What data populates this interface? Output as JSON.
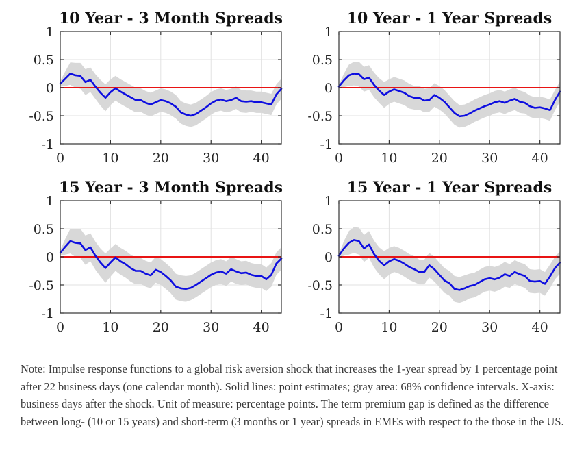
{
  "figure": {
    "note": "Note: Impulse response functions to a global risk aversion shock that increases the 1-year spread by 1 percentage point after 22 business days (one calendar month). Solid lines: point estimates; gray area: 68% confidence intervals. X-axis: business days after the shock. Unit of measure: percentage points. The term premium gap is defined as the difference between long- (10 or 15 years) and short-term (3 months or 1 year) spreads in EMEs with respect to the those in the US."
  },
  "chart_data": [
    {
      "type": "line",
      "title": "10 Year - 3 Month Spreads",
      "xlabel": "",
      "ylabel": "",
      "xlim": [
        0,
        44
      ],
      "ylim": [
        -1,
        1
      ],
      "x_ticks": [
        0,
        10,
        20,
        30,
        40
      ],
      "y_ticks": [
        1,
        0.5,
        0,
        -0.5,
        -1
      ],
      "grid": true,
      "x_start": 0,
      "x_step": 1,
      "line_color": "#0e0ee0",
      "zero_line_color": "#e81414",
      "band_color": "#d8d8d8",
      "series_name": "point estimate",
      "band_name": "68% confidence interval",
      "y": [
        0.07,
        0.16,
        0.25,
        0.22,
        0.21,
        0.1,
        0.14,
        0.02,
        -0.09,
        -0.18,
        -0.08,
        -0.01,
        -0.07,
        -0.12,
        -0.17,
        -0.22,
        -0.22,
        -0.27,
        -0.3,
        -0.26,
        -0.22,
        -0.24,
        -0.28,
        -0.34,
        -0.44,
        -0.48,
        -0.5,
        -0.47,
        -0.41,
        -0.35,
        -0.28,
        -0.23,
        -0.21,
        -0.24,
        -0.22,
        -0.18,
        -0.24,
        -0.25,
        -0.24,
        -0.26,
        -0.26,
        -0.28,
        -0.3,
        -0.12,
        -0.02
      ],
      "band_halfwidth": [
        0.05,
        0.13,
        0.2,
        0.22,
        0.23,
        0.23,
        0.22,
        0.22,
        0.23,
        0.24,
        0.23,
        0.22,
        0.22,
        0.22,
        0.22,
        0.22,
        0.21,
        0.21,
        0.21,
        0.21,
        0.21,
        0.21,
        0.21,
        0.21,
        0.2,
        0.2,
        0.2,
        0.2,
        0.2,
        0.2,
        0.2,
        0.2,
        0.2,
        0.2,
        0.2,
        0.2,
        0.2,
        0.2,
        0.19,
        0.19,
        0.19,
        0.19,
        0.19,
        0.18,
        0.18
      ]
    },
    {
      "type": "line",
      "title": "10 Year - 1 Year Spreads",
      "xlabel": "",
      "ylabel": "",
      "xlim": [
        0,
        44
      ],
      "ylim": [
        -1,
        1
      ],
      "x_ticks": [
        0,
        10,
        20,
        30,
        40
      ],
      "y_ticks": [
        1,
        0.5,
        0,
        -0.5,
        -1
      ],
      "grid": true,
      "x_start": 0,
      "x_step": 1,
      "line_color": "#0e0ee0",
      "zero_line_color": "#e81414",
      "band_color": "#d8d8d8",
      "series_name": "point estimate",
      "band_name": "68% confidence interval",
      "y": [
        0.02,
        0.13,
        0.22,
        0.25,
        0.24,
        0.15,
        0.18,
        0.05,
        -0.05,
        -0.13,
        -0.07,
        -0.03,
        -0.06,
        -0.09,
        -0.15,
        -0.18,
        -0.18,
        -0.23,
        -0.22,
        -0.13,
        -0.18,
        -0.25,
        -0.35,
        -0.45,
        -0.51,
        -0.5,
        -0.46,
        -0.41,
        -0.37,
        -0.33,
        -0.3,
        -0.26,
        -0.24,
        -0.27,
        -0.23,
        -0.2,
        -0.25,
        -0.27,
        -0.33,
        -0.36,
        -0.35,
        -0.37,
        -0.4,
        -0.22,
        -0.07
      ],
      "band_halfwidth": [
        0.03,
        0.12,
        0.19,
        0.21,
        0.22,
        0.22,
        0.22,
        0.22,
        0.22,
        0.23,
        0.22,
        0.22,
        0.22,
        0.22,
        0.22,
        0.21,
        0.21,
        0.21,
        0.21,
        0.21,
        0.21,
        0.21,
        0.21,
        0.21,
        0.2,
        0.2,
        0.2,
        0.2,
        0.2,
        0.2,
        0.2,
        0.2,
        0.2,
        0.2,
        0.2,
        0.2,
        0.2,
        0.19,
        0.19,
        0.19,
        0.19,
        0.19,
        0.19,
        0.18,
        0.18
      ]
    },
    {
      "type": "line",
      "title": "15 Year - 3 Month Spreads",
      "xlabel": "",
      "ylabel": "",
      "xlim": [
        0,
        44
      ],
      "ylim": [
        -1,
        1
      ],
      "x_ticks": [
        0,
        10,
        20,
        30,
        40
      ],
      "y_ticks": [
        1,
        0.5,
        0,
        -0.5,
        -1
      ],
      "grid": true,
      "x_start": 0,
      "x_step": 1,
      "line_color": "#0e0ee0",
      "zero_line_color": "#e81414",
      "band_color": "#d8d8d8",
      "series_name": "point estimate",
      "band_name": "68% confidence interval",
      "y": [
        0.07,
        0.18,
        0.28,
        0.25,
        0.24,
        0.12,
        0.17,
        0.02,
        -0.1,
        -0.2,
        -0.1,
        -0.01,
        -0.08,
        -0.13,
        -0.2,
        -0.25,
        -0.25,
        -0.3,
        -0.33,
        -0.23,
        -0.27,
        -0.34,
        -0.42,
        -0.53,
        -0.56,
        -0.57,
        -0.55,
        -0.5,
        -0.44,
        -0.38,
        -0.32,
        -0.28,
        -0.26,
        -0.3,
        -0.22,
        -0.26,
        -0.29,
        -0.28,
        -0.32,
        -0.34,
        -0.34,
        -0.4,
        -0.32,
        -0.12,
        -0.03
      ],
      "band_halfwidth": [
        0.05,
        0.14,
        0.22,
        0.25,
        0.26,
        0.26,
        0.25,
        0.25,
        0.25,
        0.26,
        0.25,
        0.24,
        0.24,
        0.24,
        0.24,
        0.24,
        0.23,
        0.23,
        0.23,
        0.23,
        0.23,
        0.23,
        0.23,
        0.23,
        0.23,
        0.23,
        0.22,
        0.22,
        0.22,
        0.22,
        0.22,
        0.22,
        0.22,
        0.22,
        0.22,
        0.22,
        0.21,
        0.21,
        0.21,
        0.21,
        0.21,
        0.21,
        0.21,
        0.2,
        0.2
      ]
    },
    {
      "type": "line",
      "title": "15 Year - 1 Year Spreads",
      "xlabel": "",
      "ylabel": "",
      "xlim": [
        0,
        44
      ],
      "ylim": [
        -1,
        1
      ],
      "x_ticks": [
        0,
        10,
        20,
        30,
        40
      ],
      "y_ticks": [
        1,
        0.5,
        0,
        -0.5,
        -1
      ],
      "grid": true,
      "x_start": 0,
      "x_step": 1,
      "line_color": "#0e0ee0",
      "zero_line_color": "#e81414",
      "band_color": "#d8d8d8",
      "series_name": "point estimate",
      "band_name": "68% confidence interval",
      "y": [
        0.02,
        0.15,
        0.25,
        0.3,
        0.28,
        0.15,
        0.22,
        0.05,
        -0.07,
        -0.15,
        -0.08,
        -0.04,
        -0.07,
        -0.12,
        -0.18,
        -0.22,
        -0.27,
        -0.27,
        -0.15,
        -0.22,
        -0.32,
        -0.42,
        -0.47,
        -0.57,
        -0.59,
        -0.56,
        -0.52,
        -0.5,
        -0.45,
        -0.4,
        -0.38,
        -0.4,
        -0.37,
        -0.31,
        -0.34,
        -0.27,
        -0.31,
        -0.34,
        -0.43,
        -0.44,
        -0.43,
        -0.48,
        -0.35,
        -0.2,
        -0.1
      ],
      "band_halfwidth": [
        0.03,
        0.13,
        0.21,
        0.23,
        0.24,
        0.24,
        0.24,
        0.24,
        0.24,
        0.25,
        0.24,
        0.23,
        0.23,
        0.23,
        0.23,
        0.23,
        0.22,
        0.22,
        0.22,
        0.22,
        0.22,
        0.22,
        0.22,
        0.23,
        0.23,
        0.23,
        0.22,
        0.22,
        0.22,
        0.22,
        0.22,
        0.22,
        0.22,
        0.22,
        0.21,
        0.21,
        0.21,
        0.21,
        0.21,
        0.21,
        0.21,
        0.21,
        0.21,
        0.2,
        0.2
      ]
    }
  ]
}
